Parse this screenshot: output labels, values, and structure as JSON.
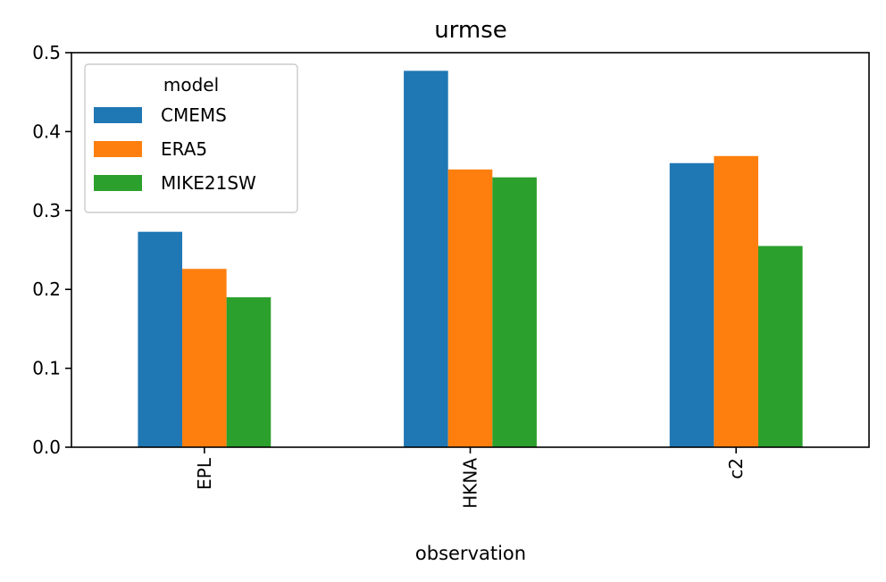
{
  "chart_data": {
    "type": "bar",
    "title": "urmse",
    "xlabel": "observation",
    "ylabel": "",
    "categories": [
      "EPL",
      "HKNA",
      "c2"
    ],
    "ylim": [
      0,
      0.5
    ],
    "yticks": [
      "0.0",
      "0.1",
      "0.2",
      "0.3",
      "0.4",
      "0.5"
    ],
    "legend_title": "model",
    "legend_position": "top-left",
    "grid": false,
    "series": [
      {
        "name": "CMEMS",
        "color": "#1f77b4",
        "values": [
          0.273,
          0.477,
          0.36
        ]
      },
      {
        "name": "ERA5",
        "color": "#ff7f0e",
        "values": [
          0.226,
          0.352,
          0.369
        ]
      },
      {
        "name": "MIKE21SW",
        "color": "#2ca02c",
        "values": [
          0.19,
          0.342,
          0.255
        ]
      }
    ]
  }
}
